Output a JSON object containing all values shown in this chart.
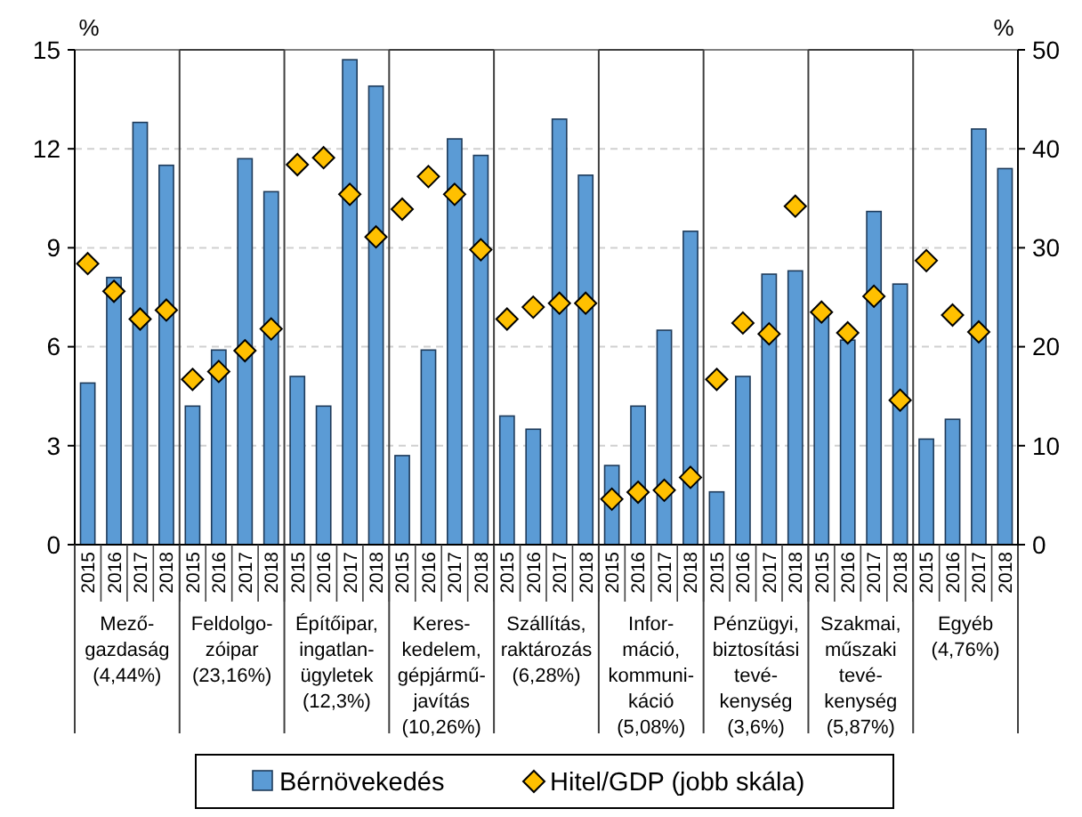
{
  "chart_data": {
    "type": "bar",
    "ylabel": "%",
    "y2label": "%",
    "categories": [
      "2015",
      "2016",
      "2017",
      "2018",
      "2015",
      "2016",
      "2017",
      "2018",
      "2015",
      "2016",
      "2017",
      "2018",
      "2015",
      "2016",
      "2017",
      "2018",
      "2015",
      "2016",
      "2017",
      "2018",
      "2015",
      "2016",
      "2017",
      "2018",
      "2015",
      "2016",
      "2017",
      "2018",
      "2015",
      "2016",
      "2017",
      "2018",
      "2015",
      "2016",
      "2017",
      "2018"
    ],
    "series": [
      {
        "name": "Bérnövekedés",
        "color": "#5b9bd5",
        "values": [
          4.9,
          8.1,
          12.8,
          11.5,
          4.2,
          5.9,
          11.7,
          10.7,
          5.1,
          4.2,
          14.7,
          13.9,
          2.7,
          5.9,
          12.3,
          11.8,
          3.9,
          3.5,
          12.9,
          11.2,
          2.4,
          4.2,
          6.5,
          9.5,
          1.6,
          5.1,
          8.2,
          8.3,
          7.1,
          6.2,
          10.1,
          7.9,
          3.2,
          3.8,
          12.6,
          11.4
        ]
      },
      {
        "name": "Hitel/GDP (jobb skála)",
        "type": "scatter",
        "axis": "y2",
        "color": "#ffc000",
        "marker": "diamond",
        "values": [
          28.4,
          25.6,
          22.8,
          23.7,
          16.7,
          17.5,
          19.6,
          21.8,
          38.4,
          39.1,
          35.4,
          31.1,
          33.9,
          37.2,
          35.4,
          29.8,
          22.8,
          24,
          24.4,
          24.4,
          4.6,
          5.3,
          5.5,
          6.8,
          16.7,
          22.4,
          21.3,
          34.2,
          23.5,
          21.4,
          25.1,
          14.6,
          28.7,
          23.2,
          21.5,
          null
        ]
      }
    ],
    "ylim": [
      0,
      15
    ],
    "yticks": [
      0,
      3,
      6,
      9,
      12,
      15
    ],
    "y2lim": [
      0,
      50
    ],
    "y2ticks": [
      0,
      10,
      20,
      30,
      40,
      50
    ],
    "grid": "y",
    "legend": "bottom",
    "annotations": [
      "Mező-\ngazdaság\n(4,44%)",
      "Feldolgo-\nzóipar\n(23,16%)",
      "Építőipar,\ningatlan-\nügyletek\n(12,3%)",
      "Keres-\nkedelem,\ngépjármű-\njavítás\n(10,26%)",
      "Szállítás,\nraktározás\n(6,28%)",
      "Infor-\nmáció,\nkommuni-\nkáció\n(5,08%)",
      "Pénzügyi,\nbiztosítási\ntevé-\nkenység\n(3,6%)",
      "Szakmai,\nműszaki\ntevé-\nkenység\n(5,87%)",
      "Egyéb\n(4,76%)"
    ]
  }
}
